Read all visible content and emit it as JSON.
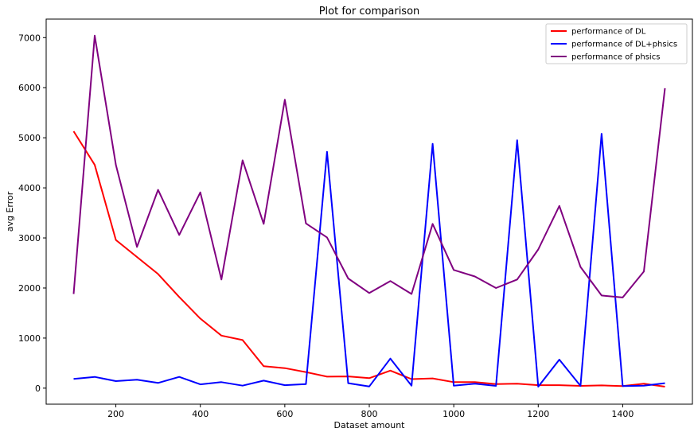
{
  "chart_data": {
    "type": "line",
    "title": "Plot for comparison",
    "xlabel": "Dataset amount",
    "ylabel": "avg Error",
    "xlim": [
      35,
      1565
    ],
    "ylim": [
      -320,
      7370
    ],
    "xticks": [
      200,
      400,
      600,
      800,
      1000,
      1200,
      1400
    ],
    "yticks": [
      0,
      1000,
      2000,
      3000,
      4000,
      5000,
      6000,
      7000
    ],
    "grid": false,
    "legend_position": "top-right",
    "x": [
      100,
      150,
      200,
      250,
      300,
      350,
      400,
      450,
      500,
      550,
      600,
      650,
      700,
      750,
      800,
      850,
      900,
      950,
      1000,
      1050,
      1100,
      1150,
      1200,
      1250,
      1300,
      1350,
      1400,
      1450,
      1500
    ],
    "series": [
      {
        "name": "performance of DL",
        "color": "#ff0000",
        "values": [
          5130,
          4460,
          2960,
          2620,
          2280,
          1820,
          1390,
          1050,
          960,
          440,
          400,
          320,
          230,
          235,
          200,
          350,
          180,
          195,
          120,
          120,
          80,
          90,
          60,
          60,
          45,
          55,
          40,
          90,
          30
        ]
      },
      {
        "name": "performance of DL+phsics",
        "color": "#0000ff",
        "values": [
          185,
          225,
          140,
          170,
          105,
          225,
          75,
          120,
          50,
          150,
          60,
          80,
          4720,
          100,
          35,
          590,
          50,
          4880,
          50,
          90,
          45,
          4950,
          30,
          570,
          45,
          5080,
          40,
          50,
          100
        ]
      },
      {
        "name": "performance of phsics",
        "color": "#800080",
        "values": [
          1880,
          7040,
          4460,
          2820,
          3960,
          3060,
          3910,
          2170,
          4550,
          3280,
          5760,
          3290,
          3010,
          2190,
          1900,
          2140,
          1880,
          3280,
          2360,
          2230,
          2000,
          2170,
          2770,
          3640,
          2420,
          1850,
          1810,
          2330,
          5990
        ]
      }
    ]
  }
}
